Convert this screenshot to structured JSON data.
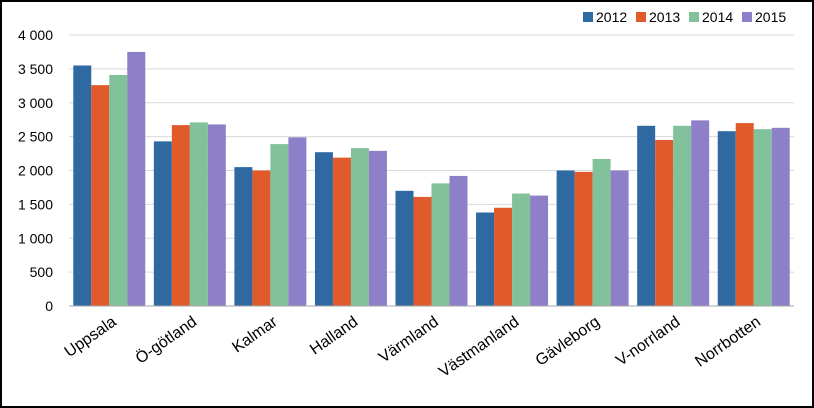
{
  "chart_data": {
    "type": "bar",
    "categories": [
      "Uppsala",
      "Ö-götland",
      "Kalmar",
      "Halland",
      "Värmland",
      "Västmanland",
      "Gävleborg",
      "V-norrland",
      "Norrbotten"
    ],
    "series": [
      {
        "name": "2012",
        "color": "#2E6AA1",
        "values": [
          3550,
          2430,
          2050,
          2270,
          1700,
          1380,
          2000,
          2660,
          2580
        ]
      },
      {
        "name": "2013",
        "color": "#E05A2B",
        "values": [
          3260,
          2670,
          2000,
          2190,
          1610,
          1450,
          1980,
          2450,
          2700
        ]
      },
      {
        "name": "2014",
        "color": "#82C29A",
        "values": [
          3410,
          2710,
          2390,
          2330,
          1810,
          1660,
          2170,
          2660,
          2610
        ]
      },
      {
        "name": "2015",
        "color": "#8E7FC9",
        "values": [
          3750,
          2680,
          2490,
          2290,
          1920,
          1630,
          2000,
          2740,
          2630
        ]
      }
    ],
    "y_ticks": [
      0,
      500,
      1000,
      1500,
      2000,
      2500,
      3000,
      3500,
      4000
    ],
    "y_tick_labels": [
      "0",
      "500",
      "1 000",
      "1 500",
      "2 000",
      "2 500",
      "3 000",
      "3 500",
      "4 000"
    ],
    "ylim": [
      0,
      4000
    ],
    "grid": true,
    "legend_position": "top-right",
    "title": "",
    "xlabel": "",
    "ylabel": ""
  }
}
